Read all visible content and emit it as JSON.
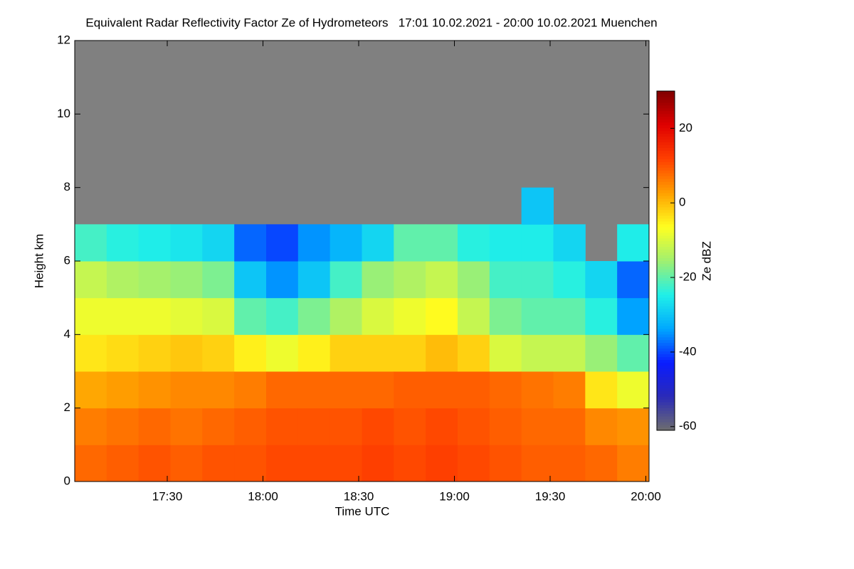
{
  "chart_data": {
    "type": "heatmap",
    "title": "Equivalent Radar Reflectivity Factor Ze of Hydrometeors   17:01 10.02.2021 - 20:00 10.02.2021 Muenchen",
    "xlabel": "Time UTC",
    "ylabel": "Height km",
    "xlim": [
      1021,
      1201
    ],
    "xticks": [
      {
        "value": 1050,
        "label": "17:30"
      },
      {
        "value": 1080,
        "label": "18:00"
      },
      {
        "value": 1110,
        "label": "18:30"
      },
      {
        "value": 1140,
        "label": "19:00"
      },
      {
        "value": 1170,
        "label": "19:30"
      },
      {
        "value": 1200,
        "label": "20:00"
      }
    ],
    "ylim": [
      0,
      12
    ],
    "yticks": [
      0,
      2,
      4,
      6,
      8,
      10,
      12
    ],
    "x": [
      1021,
      1031,
      1041,
      1051,
      1061,
      1071,
      1081,
      1091,
      1101,
      1111,
      1121,
      1131,
      1141,
      1151,
      1161,
      1171,
      1181,
      1191
    ],
    "y": [
      0,
      1,
      2,
      3,
      4,
      5,
      6,
      7,
      8,
      9,
      10,
      11
    ],
    "values": [
      [
        8,
        6,
        2,
        -4,
        -8,
        -12,
        -22,
        null,
        null,
        null,
        null,
        null
      ],
      [
        9,
        7,
        3,
        -3,
        -8,
        -14,
        -24,
        null,
        null,
        null,
        null,
        null
      ],
      [
        10,
        8,
        4,
        -2,
        -8,
        -15,
        -25,
        null,
        null,
        null,
        null,
        null
      ],
      [
        9,
        7,
        5,
        -1,
        -9,
        -16,
        -26,
        null,
        null,
        null,
        null,
        null
      ],
      [
        10,
        8,
        5,
        -2,
        -10,
        -18,
        -28,
        null,
        null,
        null,
        null,
        null
      ],
      [
        10,
        9,
        6,
        -5,
        -20,
        -30,
        -38,
        null,
        null,
        null,
        null,
        null
      ],
      [
        11,
        10,
        8,
        -8,
        -22,
        -35,
        -40,
        null,
        null,
        null,
        null,
        null
      ],
      [
        11,
        10,
        8,
        -5,
        -18,
        -30,
        -35,
        null,
        null,
        null,
        null,
        null
      ],
      [
        11,
        10,
        8,
        -2,
        -14,
        -22,
        -32,
        null,
        null,
        null,
        null,
        null
      ],
      [
        12,
        11,
        8,
        -2,
        -10,
        -16,
        -28,
        null,
        null,
        null,
        null,
        null
      ],
      [
        11,
        10,
        9,
        -2,
        -8,
        -14,
        -20,
        null,
        null,
        null,
        null,
        null
      ],
      [
        12,
        11,
        9,
        0,
        -6,
        -12,
        -20,
        null,
        null,
        null,
        null,
        null
      ],
      [
        11,
        10,
        9,
        -2,
        -12,
        -16,
        -24,
        null,
        null,
        null,
        null,
        null
      ],
      [
        10,
        9,
        8,
        -10,
        -18,
        -22,
        -25,
        null,
        null,
        null,
        null,
        null
      ],
      [
        9,
        8,
        7,
        -12,
        -20,
        -22,
        -25,
        -30,
        null,
        null,
        null,
        null
      ],
      [
        9,
        8,
        6,
        -12,
        -20,
        -24,
        -28,
        null,
        null,
        null,
        null,
        null
      ],
      [
        8,
        5,
        -4,
        -16,
        -24,
        -28,
        null,
        null,
        null,
        null,
        null,
        null
      ],
      [
        6,
        4,
        -8,
        -20,
        -34,
        -38,
        -25,
        null,
        null,
        null,
        null,
        null
      ]
    ],
    "no_data_color": "#808080",
    "colormap": [
      "#6e6e6e",
      "#2a2ab8",
      "#0a1cff",
      "#00a8ff",
      "#20f0e8",
      "#a0f070",
      "#ffff20",
      "#ffa000",
      "#ff4000",
      "#e00000",
      "#800000"
    ],
    "colorbar": {
      "label": "Ze dBZ",
      "lim": [
        -61,
        30
      ],
      "ticks": [
        -60,
        -40,
        -20,
        0,
        20
      ]
    }
  }
}
